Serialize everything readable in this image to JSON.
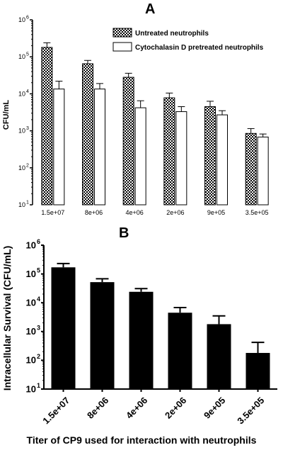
{
  "chart_data": [
    {
      "type": "bar",
      "panel_label": "A",
      "categories": [
        "1.5e+07",
        "8e+06",
        "4e+06",
        "2e+06",
        "9e+05",
        "3.5e+05"
      ],
      "ylabel": "CFU/mL",
      "xlabel": "",
      "yscale": "log",
      "ylim": [
        10,
        1000000
      ],
      "ytick_values": [
        10,
        100,
        1000,
        10000,
        100000,
        1000000
      ],
      "ytick_labels": [
        "10",
        "10",
        "10",
        "10",
        "10",
        "10"
      ],
      "ytick_exponents": [
        "1",
        "2",
        "3",
        "4",
        "5",
        "6"
      ],
      "legend_position": "top-right",
      "series": [
        {
          "name": "Untreated neutrophils",
          "pattern": "checkered",
          "values": [
            180000,
            65000,
            28000,
            7800,
            4500,
            850
          ],
          "error_upper": [
            240000,
            80000,
            36000,
            10500,
            6300,
            1150
          ]
        },
        {
          "name": "Cytochalasin D pretreated neutrophils",
          "pattern": "open",
          "values": [
            13500,
            13500,
            4200,
            3300,
            2700,
            680
          ],
          "error_upper": [
            22000,
            19000,
            6500,
            4500,
            3500,
            820
          ]
        }
      ]
    },
    {
      "type": "bar",
      "panel_label": "B",
      "categories": [
        "1.5e+07",
        "8e+06",
        "4e+06",
        "2e+06",
        "9e+05",
        "3.5e+05"
      ],
      "ylabel": "Intracellular Survival (CFU/mL)",
      "xlabel": "Titer of CP9 used for interaction with neutrophils",
      "yscale": "log",
      "ylim": [
        10,
        1000000
      ],
      "ytick_values": [
        10,
        100,
        1000,
        10000,
        100000,
        1000000
      ],
      "ytick_labels": [
        "10",
        "10",
        "10",
        "10",
        "10",
        "10"
      ],
      "ytick_exponents": [
        "1",
        "2",
        "3",
        "4",
        "5",
        "6"
      ],
      "series": [
        {
          "values": [
            170000,
            52000,
            24000,
            4500,
            1800,
            180
          ],
          "error_upper": [
            230000,
            68000,
            31000,
            6800,
            3500,
            420
          ],
          "color": "#000000"
        }
      ]
    }
  ]
}
